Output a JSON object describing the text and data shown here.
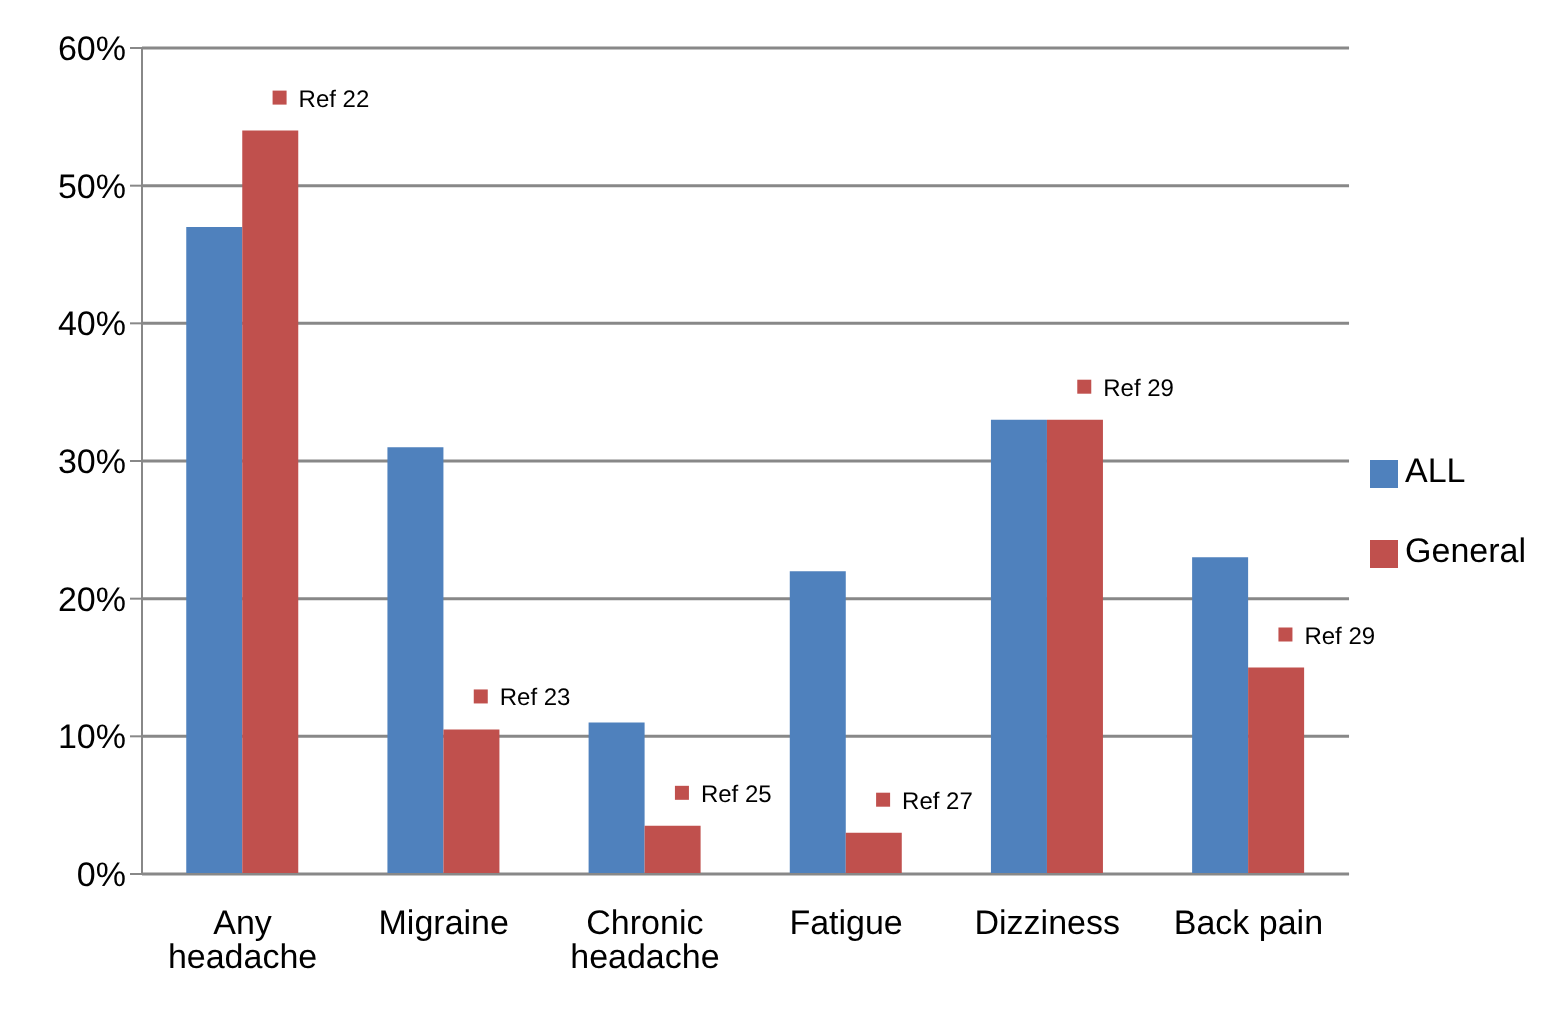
{
  "chart_data": {
    "type": "bar",
    "categories": [
      "Any headache",
      "Migraine",
      "Chronic headache",
      "Fatigue",
      "Dizziness",
      "Back pain"
    ],
    "series": [
      {
        "name": "ALL",
        "color": "#4f81bd",
        "values": [
          47,
          31,
          11,
          22,
          33,
          23
        ]
      },
      {
        "name": "General",
        "color": "#c0504d",
        "values": [
          54,
          10.5,
          3.5,
          3,
          33,
          15
        ]
      }
    ],
    "ylim": [
      0,
      60
    ],
    "yticks": [
      {
        "value": 0,
        "label": "0%"
      },
      {
        "value": 10,
        "label": "10%"
      },
      {
        "value": 20,
        "label": "20%"
      },
      {
        "value": 30,
        "label": "30%"
      },
      {
        "value": 40,
        "label": "40%"
      },
      {
        "value": 50,
        "label": "50%"
      },
      {
        "value": 60,
        "label": "60%"
      }
    ],
    "grid": "y",
    "legend": "right",
    "annotations": [
      {
        "text": "Ref 22",
        "x": "Any headache",
        "y": 54
      },
      {
        "text": "Ref 23",
        "x": "Migraine",
        "y": 10.5
      },
      {
        "text": "Ref 25",
        "x": "Chronic headache",
        "y": 3.5
      },
      {
        "text": "Ref 27",
        "x": "Fatigue",
        "y": 3
      },
      {
        "text": "Ref 29",
        "x": "Dizziness",
        "y": 33
      },
      {
        "text": "Ref 29",
        "x": "Back pain",
        "y": 15
      }
    ]
  }
}
